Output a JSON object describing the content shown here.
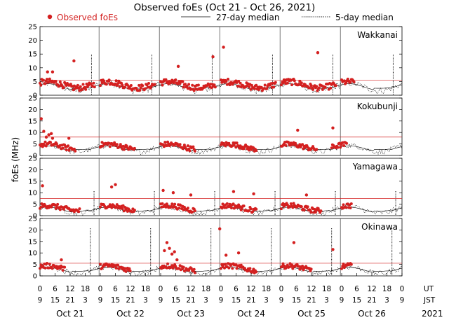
{
  "chart_data": {
    "type": "scatter",
    "title": "Observed foEs (Oct 21 - Oct 26, 2021)",
    "ylabel": "foEs (MHz)",
    "legend": {
      "observed": "Observed foEs",
      "median27": "27-day median",
      "median5": "5-day median",
      "position": "top"
    },
    "colors": {
      "observed": "#d42020",
      "threshold": "#d42020",
      "median": "#000000",
      "separator": "#555555"
    },
    "ylim": [
      0,
      25
    ],
    "yticks": [
      0,
      5,
      10,
      15,
      20,
      25
    ],
    "xlim_hours_ut": [
      0,
      144
    ],
    "x_tick_labels_ut": [
      "0",
      "6",
      "12",
      "18",
      "0",
      "6",
      "12",
      "18",
      "0",
      "6",
      "12",
      "18",
      "0",
      "6",
      "12",
      "18",
      "0",
      "6",
      "12",
      "18",
      "0",
      "6",
      "12",
      "18",
      "0"
    ],
    "x_tick_labels_jst": [
      "9",
      "15",
      "21",
      "3",
      "9",
      "15",
      "21",
      "3",
      "9",
      "15",
      "21",
      "3",
      "9",
      "15",
      "21",
      "3",
      "9",
      "15",
      "21",
      "3",
      "9",
      "15",
      "21",
      "3",
      "9"
    ],
    "axis_row_labels": {
      "ut": "UT",
      "jst": "JST"
    },
    "days": [
      "Oct 21",
      "Oct 22",
      "Oct 23",
      "Oct 24",
      "Oct 25",
      "Oct 26"
    ],
    "year": "2021",
    "grid": false,
    "panels": [
      {
        "station": "Wakkanai",
        "threshold": 5.5,
        "baseline": 3,
        "spikes": [
          {
            "x": 20.5,
            "h": 15
          },
          {
            "x": 44.5,
            "h": 15
          },
          {
            "x": 68.5,
            "h": 15
          },
          {
            "x": 92.5,
            "h": 15
          },
          {
            "x": 116.5,
            "h": 15
          },
          {
            "x": 140.5,
            "h": 15
          }
        ],
        "outliers": [
          {
            "x": 13.5,
            "y": 12.5
          },
          {
            "x": 3,
            "y": 8.5
          },
          {
            "x": 5,
            "y": 8.5
          },
          {
            "x": 55,
            "y": 10.5
          },
          {
            "x": 68.8,
            "y": 14
          },
          {
            "x": 73,
            "y": 17.5
          },
          {
            "x": 110.5,
            "y": 15.5
          },
          {
            "x": 27.5,
            "y": 5.5
          },
          {
            "x": 98,
            "y": 5.5
          }
        ],
        "observed_segments": [
          [
            0,
            22
          ],
          [
            24,
            46
          ],
          [
            48,
            70
          ],
          [
            72,
            94
          ],
          [
            96,
            118
          ],
          [
            120,
            125
          ]
        ]
      },
      {
        "station": "Kokubunji",
        "threshold": 8,
        "baseline": 3,
        "spikes": [],
        "outliers": [
          {
            "x": 0.5,
            "y": 16
          },
          {
            "x": 1.5,
            "y": 10.5
          },
          {
            "x": 2.5,
            "y": 8
          },
          {
            "x": 3.5,
            "y": 9
          },
          {
            "x": 4.5,
            "y": 9.5
          },
          {
            "x": 5,
            "y": 7.5
          },
          {
            "x": 11.5,
            "y": 7.5
          },
          {
            "x": 102.5,
            "y": 11
          },
          {
            "x": 116.5,
            "y": 12
          }
        ],
        "observed_segments": [
          [
            0,
            14
          ],
          [
            24,
            38
          ],
          [
            48,
            62
          ],
          [
            72,
            86
          ],
          [
            96,
            110
          ],
          [
            116,
            122
          ]
        ]
      },
      {
        "station": "Yamagawa",
        "threshold": 7.5,
        "baseline": 2.5,
        "spikes": [
          {
            "x": 21.5,
            "h": 11
          },
          {
            "x": 45.5,
            "h": 11
          },
          {
            "x": 69.5,
            "h": 11
          },
          {
            "x": 93.5,
            "h": 11
          },
          {
            "x": 117.5,
            "h": 11
          },
          {
            "x": 141.5,
            "h": 11
          }
        ],
        "outliers": [
          {
            "x": 1,
            "y": 13
          },
          {
            "x": 28.5,
            "y": 12.5
          },
          {
            "x": 30,
            "y": 13.5
          },
          {
            "x": 49,
            "y": 11
          },
          {
            "x": 53,
            "y": 10
          },
          {
            "x": 60,
            "y": 9
          },
          {
            "x": 77,
            "y": 10.5
          },
          {
            "x": 85,
            "y": 9.5
          },
          {
            "x": 106,
            "y": 9
          }
        ],
        "observed_segments": [
          [
            0,
            16
          ],
          [
            24,
            38
          ],
          [
            48,
            62
          ],
          [
            72,
            86
          ],
          [
            96,
            112
          ],
          [
            120,
            124
          ]
        ]
      },
      {
        "station": "Okinawa",
        "threshold": 5.5,
        "baseline": 2.5,
        "spikes": [
          {
            "x": 20,
            "h": 21
          },
          {
            "x": 44,
            "h": 21
          },
          {
            "x": 68,
            "h": 21
          },
          {
            "x": 92,
            "h": 21
          },
          {
            "x": 116,
            "h": 21
          },
          {
            "x": 140,
            "h": 21
          }
        ],
        "outliers": [
          {
            "x": 49.5,
            "y": 11
          },
          {
            "x": 50.5,
            "y": 14.5
          },
          {
            "x": 51.5,
            "y": 12
          },
          {
            "x": 52.5,
            "y": 9.5
          },
          {
            "x": 53.5,
            "y": 10.5
          },
          {
            "x": 54.5,
            "y": 7
          },
          {
            "x": 71.5,
            "y": 20.5
          },
          {
            "x": 74,
            "y": 9
          },
          {
            "x": 79,
            "y": 10
          },
          {
            "x": 101,
            "y": 14.5
          },
          {
            "x": 116.5,
            "y": 11.5
          },
          {
            "x": 8.5,
            "y": 7
          }
        ],
        "observed_segments": [
          [
            0,
            10
          ],
          [
            24,
            36
          ],
          [
            48,
            62
          ],
          [
            72,
            86
          ],
          [
            96,
            108
          ],
          [
            120,
            124
          ]
        ]
      }
    ]
  }
}
